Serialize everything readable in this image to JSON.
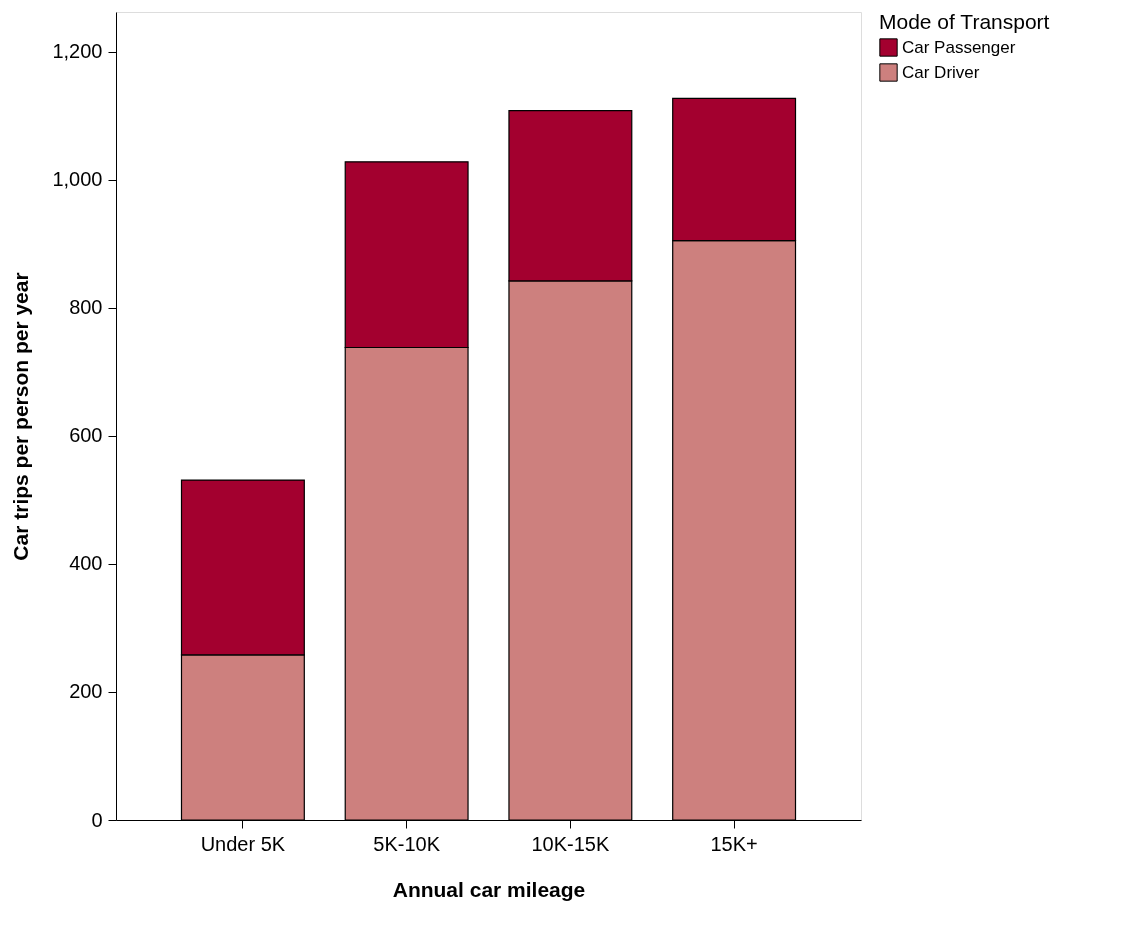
{
  "chart_data": {
    "type": "bar",
    "stacked": true,
    "xlabel": "Annual car mileage",
    "ylabel": "Car trips per person per year",
    "legend_title": "Mode of Transport",
    "legend": "top right",
    "categories": [
      "Under 5K",
      "5K-10K",
      "10K-15K",
      "15K+"
    ],
    "series": [
      {
        "name": "Car Driver",
        "color": "#cd807e",
        "values": [
          258,
          738,
          842,
          905
        ]
      },
      {
        "name": "Car Passenger",
        "color": "#a3002f",
        "values": [
          273,
          290,
          266,
          222
        ]
      }
    ],
    "ylim": [
      0,
      1262
    ],
    "yticks": [
      0,
      200,
      400,
      600,
      800,
      {
        "value": 1000,
        "label": "1,000"
      },
      {
        "value": 1200,
        "label": "1,200"
      }
    ],
    "grid": false
  }
}
